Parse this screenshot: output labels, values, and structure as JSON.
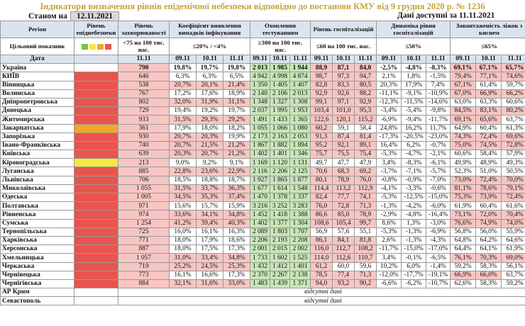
{
  "title": "Індикатори визначення рівнів епідемічної небезпеки відповідно до постанови КМУ від 9 грудня 2020 р. № 1236",
  "state_label": "Станом на",
  "state_date": "12.11.2021",
  "available_label": "Дані доступні за 11.11.2021",
  "headers": {
    "region": "Регіон",
    "level": "Рівень епіднебезпеки",
    "incidence": "Рівень захворюваності",
    "detection": "Коефіцієнт виявлення випадків інфікування",
    "testing": "Охоплення тестуванням",
    "hosp": "Рівень госпіталізацій",
    "dyn": "Динаміка рівня госпіталізацій",
    "beds": "Завантаженість ліжок з киснем"
  },
  "targets": {
    "label": "Цільовий показник",
    "incidence": "<75 на 100 тис. нас.",
    "detection": "≤20% / <4%",
    "testing": "≥300 на 100 тис. нас.",
    "hosp": "≤60 на 100 тис. нас.",
    "dyn": "≤50%",
    "beds": "≤65%"
  },
  "dates": {
    "label": "Дата",
    "d1": "09.11",
    "d2": "10.11",
    "d3": "11.11"
  },
  "rows": [
    {
      "name": "Україна",
      "level": "",
      "inc": "790",
      "det": [
        "19,8%",
        "19,7%",
        "19,8%"
      ],
      "test": [
        "2 013",
        "1 985",
        "1 944"
      ],
      "hosp": [
        "88,9",
        "87,1",
        "84,0"
      ],
      "dyn": [
        "-2,5%",
        "-4,8%",
        "-8,3%"
      ],
      "beds": [
        "69,1%",
        "67,1%",
        "65,7%"
      ]
    },
    {
      "name": "КИЇВ",
      "level": "red",
      "inc": "646",
      "det": [
        "6,3%",
        "6,3%",
        "6,5%"
      ],
      "test": [
        "4 942",
        "4 998",
        "4 874"
      ],
      "hosp": [
        "98,7",
        "97,3",
        "94,7"
      ],
      "dyn": [
        "2,1%",
        "1,8%",
        "-1,5%"
      ],
      "beds": [
        "79,4%",
        "77,1%",
        "74,6%"
      ]
    },
    {
      "name": "Вінницька",
      "level": "red",
      "inc": "538",
      "det": [
        "20,7%",
        "20,1%",
        "21,4%"
      ],
      "test": [
        "1 350",
        "1 405",
        "1 407"
      ],
      "hosp": [
        "82,8",
        "83,3",
        "80,5"
      ],
      "dyn": [
        "20,3%",
        "17,9%",
        "7,4%"
      ],
      "beds": [
        "67,1%",
        "61,4%",
        "59,7%"
      ]
    },
    {
      "name": "Волинська",
      "level": "red",
      "inc": "767",
      "det": [
        "17,2%",
        "17,6%",
        "18,9%"
      ],
      "test": [
        "2 140",
        "2 106",
        "2 013"
      ],
      "hosp": [
        "92,9",
        "92,6",
        "88,2"
      ],
      "dyn": [
        "-11,1%",
        "-9,1%",
        "-10,9%"
      ],
      "beds": [
        "67,0%",
        "66,9%",
        "66,2%"
      ]
    },
    {
      "name": "Дніпропетровська",
      "level": "red",
      "inc": "802",
      "det": [
        "32,0%",
        "31,9%",
        "31,1%"
      ],
      "test": [
        "1 348",
        "1 327",
        "1 308"
      ],
      "hosp": [
        "99,1",
        "97,1",
        "92,9"
      ],
      "dyn": [
        "-12,3%",
        "-11,5%",
        "-14,6%"
      ],
      "beds": [
        "63,0%",
        "63,3%",
        "60,6%"
      ]
    },
    {
      "name": "Донецька",
      "level": "red",
      "inc": "729",
      "det": [
        "19,4%",
        "19,2%",
        "19,7%"
      ],
      "test": [
        "2 037",
        "1 995",
        "1 953"
      ],
      "hosp": [
        "103,4",
        "101,0",
        "95,3"
      ],
      "dyn": [
        "-3,4%",
        "-5,4%",
        "-9,8%"
      ],
      "beds": [
        "84,5%",
        "83,1%",
        "80,2%"
      ]
    },
    {
      "name": "Житомирська",
      "level": "red",
      "inc": "933",
      "det": [
        "31,5%",
        "29,3%",
        "29,2%"
      ],
      "test": [
        "1 491",
        "1 433",
        "1 365"
      ],
      "hosp": [
        "122,6",
        "120,1",
        "115,2"
      ],
      "dyn": [
        "-6,9%",
        "-9,4%",
        "-11,7%"
      ],
      "beds": [
        "69,1%",
        "65,6%",
        "63,7%"
      ]
    },
    {
      "name": "Закарпатська",
      "level": "orange",
      "inc": "361",
      "det": [
        "17,9%",
        "18,0%",
        "18,2%"
      ],
      "test": [
        "1 055",
        "1 066",
        "1 080"
      ],
      "hosp": [
        "60,2",
        "59,1",
        "58,4"
      ],
      "dyn": [
        "24,8%",
        "16,2%",
        "11,7%"
      ],
      "beds": [
        "64,9%",
        "60,4%",
        "61,3%"
      ]
    },
    {
      "name": "Запорізька",
      "level": "red",
      "inc": "930",
      "det": [
        "20,7%",
        "20,3%",
        "19,9%"
      ],
      "test": [
        "2 173",
        "2 163",
        "2 053"
      ],
      "hosp": [
        "91,3",
        "87,4",
        "81,4"
      ],
      "dyn": [
        "-17,3%",
        "-20,5%",
        "-23,0%"
      ],
      "beds": [
        "74,3%",
        "72,4%",
        "69,6%"
      ]
    },
    {
      "name": "Івано-Франківська",
      "level": "red",
      "inc": "740",
      "det": [
        "20,7%",
        "21,5%",
        "21,2%"
      ],
      "test": [
        "1 867",
        "1 882",
        "1 894"
      ],
      "hosp": [
        "95,2",
        "92,1",
        "89,1"
      ],
      "dyn": [
        "16,4%",
        "6,2%",
        "-0,7%"
      ],
      "beds": [
        "75,0%",
        "74,5%",
        "72,8%"
      ]
    },
    {
      "name": "Київська",
      "level": "red",
      "inc": "639",
      "det": [
        "20,3%",
        "20,7%",
        "21,2%"
      ],
      "test": [
        "1 402",
        "1 401",
        "1 346"
      ],
      "hosp": [
        "75,7",
        "75,5",
        "75,4"
      ],
      "dyn": [
        "-5,3%",
        "-4,7%",
        "-2,1%"
      ],
      "beds": [
        "60,6%",
        "58,4%",
        "57,9%"
      ]
    },
    {
      "name": "Кіровоградська",
      "level": "yellow",
      "inc": "213",
      "det": [
        "9,0%",
        "9,2%",
        "9,1%"
      ],
      "test": [
        "1 169",
        "1 120",
        "1 131"
      ],
      "hosp": [
        "49,7",
        "47,7",
        "47,9"
      ],
      "dyn": [
        "3,4%",
        "-8,3%",
        "-6,1%"
      ],
      "beds": [
        "49,9%",
        "48,9%",
        "49,3%"
      ]
    },
    {
      "name": "Луганська",
      "level": "red",
      "inc": "885",
      "det": [
        "22,8%",
        "23,6%",
        "22,9%"
      ],
      "test": [
        "2 116",
        "2 206",
        "2 125"
      ],
      "hosp": [
        "70,6",
        "68,3",
        "69,2"
      ],
      "dyn": [
        "-3,7%",
        "-7,1%",
        "-5,7%"
      ],
      "beds": [
        "52,3%",
        "51,0%",
        "50,5%"
      ]
    },
    {
      "name": "Львівська",
      "level": "red",
      "inc": "706",
      "det": [
        "18,5%",
        "18,8%",
        "18,7%"
      ],
      "test": [
        "1 927",
        "1 865",
        "1 877"
      ],
      "hosp": [
        "80,1",
        "78,9",
        "76,0"
      ],
      "dyn": [
        "-0,8%",
        "-0,9%",
        "-7,0%"
      ],
      "beds": [
        "73,0%",
        "72,4%",
        "70,0%"
      ]
    },
    {
      "name": "Миколаївська",
      "level": "red",
      "inc": "1 055",
      "det": [
        "31,5%",
        "33,7%",
        "36,3%"
      ],
      "test": [
        "1 677",
        "1 614",
        "1 548"
      ],
      "hosp": [
        "114,4",
        "113,2",
        "112,9"
      ],
      "dyn": [
        "-4,1%",
        "-3,3%",
        "-0,6%"
      ],
      "beds": [
        "81,1%",
        "78,6%",
        "79,1%"
      ]
    },
    {
      "name": "Одеська",
      "level": "red",
      "inc": "1 005",
      "det": [
        "34,5%",
        "35,3%",
        "37,4%"
      ],
      "test": [
        "1 470",
        "1 378",
        "1 337"
      ],
      "hosp": [
        "82,4",
        "77,7",
        "74,1"
      ],
      "dyn": [
        "-5,3%",
        "-12,5%",
        "-15,0%"
      ],
      "beds": [
        "75,3%",
        "73,9%",
        "72,4%"
      ]
    },
    {
      "name": "Полтавська",
      "level": "red",
      "inc": "971",
      "det": [
        "15,6%",
        "15,7%",
        "15,9%"
      ],
      "test": [
        "3 216",
        "3 252",
        "3 283"
      ],
      "hosp": [
        "76,0",
        "72,8",
        "71,3"
      ],
      "dyn": [
        "-1,3%",
        "-4,2%",
        "-6,0%"
      ],
      "beds": [
        "61,9%",
        "60,4%",
        "61,6%"
      ]
    },
    {
      "name": "Рівненська",
      "level": "red",
      "inc": "974",
      "det": [
        "33,6%",
        "34,1%",
        "34,8%"
      ],
      "test": [
        "1 452",
        "1 418",
        "1 388"
      ],
      "hosp": [
        "86,6",
        "85,0",
        "78,9"
      ],
      "dyn": [
        "-2,9%",
        "-4,8%",
        "-16,4%"
      ],
      "beds": [
        "73,1%",
        "72,0%",
        "70,4%"
      ]
    },
    {
      "name": "Сумська",
      "level": "red",
      "inc": "1 254",
      "det": [
        "41,2%",
        "39,4%",
        "40,3%"
      ],
      "test": [
        "1 402",
        "1 377",
        "1 304"
      ],
      "hosp": [
        "108,6",
        "105,4",
        "99,7"
      ],
      "dyn": [
        "8,6%",
        "1,3%",
        "-3,0%"
      ],
      "beds": [
        "76,6%",
        "74,9%",
        "74,0%"
      ]
    },
    {
      "name": "Тернопільська",
      "level": "red",
      "inc": "725",
      "det": [
        "16,0%",
        "16,1%",
        "16,3%"
      ],
      "test": [
        "2 089",
        "1 803",
        "1 707"
      ],
      "hosp": [
        "56,9",
        "57,6",
        "55,1"
      ],
      "dyn": [
        "-5,3%",
        "-1,3%",
        "-6,9%"
      ],
      "beds": [
        "56,8%",
        "56,0%",
        "55,9%"
      ]
    },
    {
      "name": "Харківська",
      "level": "red",
      "inc": "771",
      "det": [
        "18,0%",
        "17,9%",
        "18,6%"
      ],
      "test": [
        "2 206",
        "2 193",
        "2 208"
      ],
      "hosp": [
        "86,1",
        "84,1",
        "81,8"
      ],
      "dyn": [
        "2,6%",
        "-1,3%",
        "-4,3%"
      ],
      "beds": [
        "64,8%",
        "64,2%",
        "64,6%"
      ]
    },
    {
      "name": "Херсонська",
      "level": "red",
      "inc": "887",
      "det": [
        "18,0%",
        "17,5%",
        "17,3%"
      ],
      "test": [
        "2 001",
        "2 015",
        "2 002"
      ],
      "hosp": [
        "116,0",
        "112,7",
        "108,2"
      ],
      "dyn": [
        "-11,7%",
        "-15,0%",
        "-17,0%"
      ],
      "beds": [
        "64,4%",
        "64,1%",
        "61,9%"
      ]
    },
    {
      "name": "Хмельницька",
      "level": "red",
      "inc": "1 057",
      "det": [
        "31,0%",
        "33,4%",
        "34,8%"
      ],
      "test": [
        "1 733",
        "1 602",
        "1 525"
      ],
      "hosp": [
        "114,0",
        "112,6",
        "110,7"
      ],
      "dyn": [
        "3,4%",
        "-0,1%",
        "-6,5%"
      ],
      "beds": [
        "76,1%",
        "70,3%",
        "69,0%"
      ]
    },
    {
      "name": "Черкаська",
      "level": "red",
      "inc": "719",
      "det": [
        "25,2%",
        "24,5%",
        "25,3%"
      ],
      "test": [
        "1 432",
        "1 412",
        "1 401"
      ],
      "hosp": [
        "61,2",
        "60,0",
        "59,6"
      ],
      "dyn": [
        "10,2%",
        "6,0%",
        "-1,4%"
      ],
      "beds": [
        "59,2%",
        "58,3%",
        "56,1%"
      ]
    },
    {
      "name": "Чернівецька",
      "level": "red",
      "inc": "773",
      "det": [
        "16,1%",
        "16,6%",
        "17,3%"
      ],
      "test": [
        "2 370",
        "2 267",
        "2 138"
      ],
      "hosp": [
        "78,5",
        "77,4",
        "71,3"
      ],
      "dyn": [
        "-12,0%",
        "-17,7%",
        "-19,1%"
      ],
      "beds": [
        "66,9%",
        "66,0%",
        "63,7%"
      ]
    },
    {
      "name": "Чернігівська",
      "level": "red",
      "inc": "884",
      "det": [
        "32,1%",
        "31,6%",
        "33,0%"
      ],
      "test": [
        "1 483",
        "1 439",
        "1 371"
      ],
      "hosp": [
        "94,0",
        "93,2",
        "90,2"
      ],
      "dyn": [
        "-6,6%",
        "-6,2%",
        "-10,7%"
      ],
      "beds": [
        "62,6%",
        "58,3%",
        "59,2%"
      ]
    }
  ],
  "nodata_rows": [
    {
      "name": "АР Крим",
      "text": "відсутні дані"
    },
    {
      "name": "Севастополь",
      "text": "відсутні дані"
    }
  ]
}
